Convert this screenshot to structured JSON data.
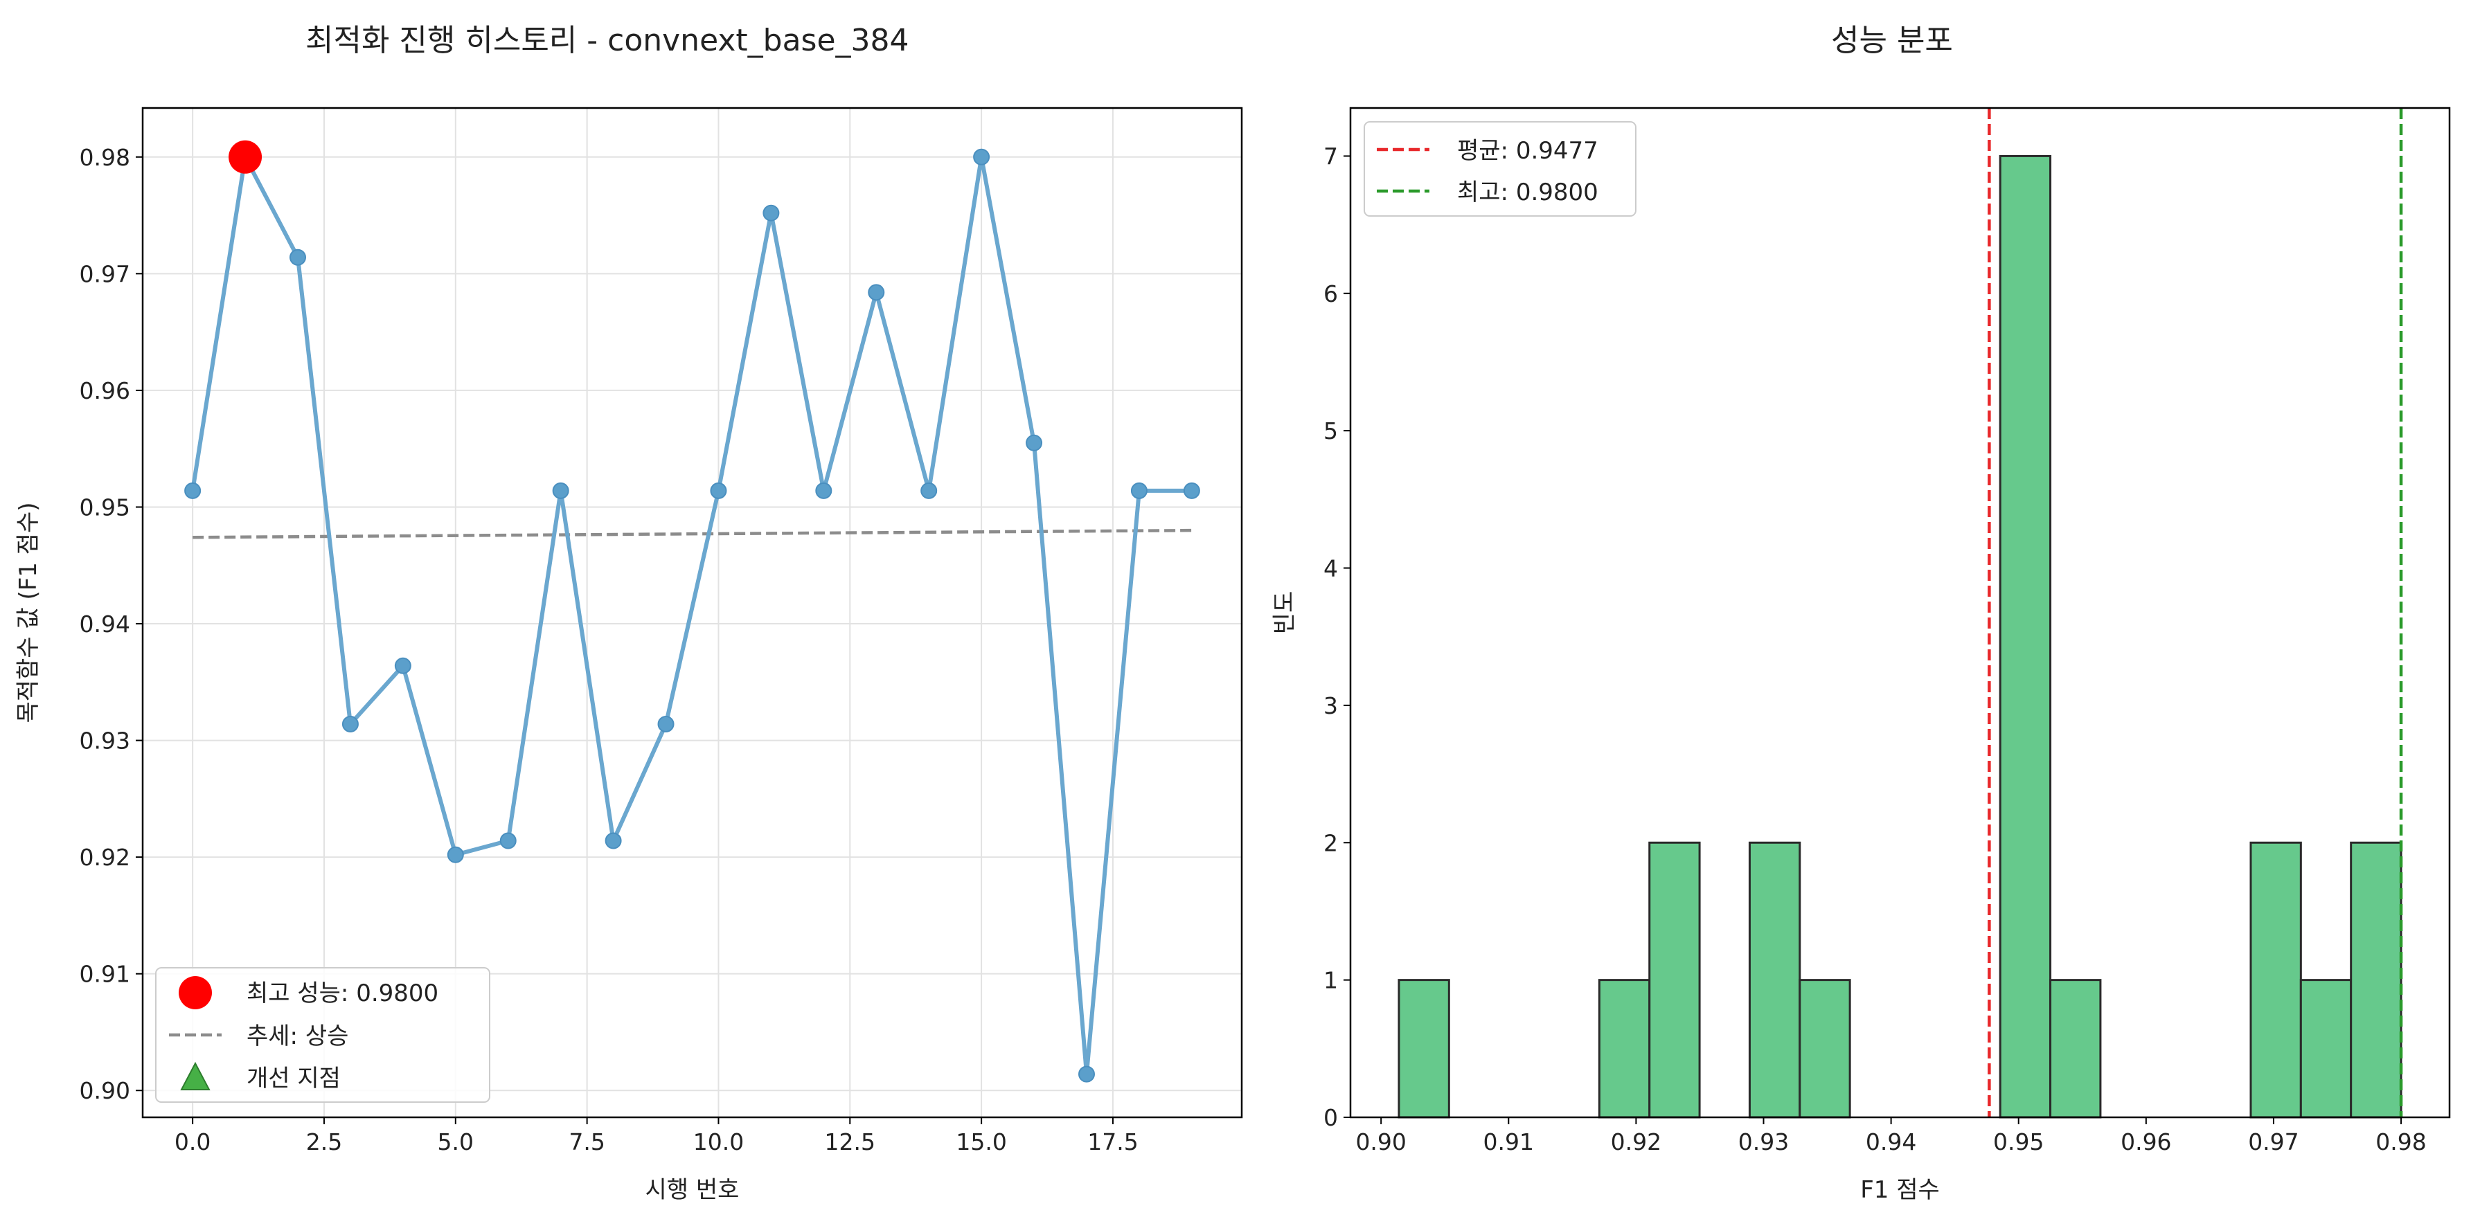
{
  "figure": {
    "left": {
      "title": "최적화 진행 히스토리 - convnext_base_384",
      "chart_data": {
        "type": "line",
        "title": "최적화 진행 히스토리 - convnext_base_384",
        "xlabel": "시행 번호",
        "ylabel": "목적함수 값 (F1 점수)",
        "xlim": [
          -0.95,
          19.95
        ],
        "ylim": [
          0.8977,
          0.9842
        ],
        "xticks": [
          0.0,
          2.5,
          5.0,
          7.5,
          10.0,
          12.5,
          15.0,
          17.5
        ],
        "xtick_labels": [
          "0.0",
          "2.5",
          "5.0",
          "7.5",
          "10.0",
          "12.5",
          "15.0",
          "17.5"
        ],
        "yticks": [
          0.9,
          0.91,
          0.92,
          0.93,
          0.94,
          0.95,
          0.96,
          0.97,
          0.98
        ],
        "ytick_labels": [
          "0.90",
          "0.91",
          "0.92",
          "0.93",
          "0.94",
          "0.95",
          "0.96",
          "0.97",
          "0.98"
        ],
        "grid": true,
        "series": [
          {
            "x": [
              0,
              1,
              2,
              3,
              4,
              5,
              6,
              7,
              8,
              9,
              10,
              11,
              12,
              13,
              14,
              15,
              16,
              17,
              18,
              19
            ],
            "y": [
              0.9514,
              0.98,
              0.9714,
              0.9314,
              0.9364,
              0.9202,
              0.9214,
              0.9514,
              0.9214,
              0.9314,
              0.9514,
              0.9752,
              0.9514,
              0.9684,
              0.9514,
              0.98,
              0.9555,
              0.9014,
              0.9514,
              0.9514
            ],
            "color": "#6aa7cf"
          },
          {
            "name": "최고 성능: 0.9800",
            "x": [
              1
            ],
            "y": [
              0.98
            ],
            "color": "#ff0000"
          },
          {
            "name": "추세: 상승",
            "x": [
              0,
              19
            ],
            "y": [
              0.9474,
              0.948
            ],
            "color": "#8c8c8c"
          },
          {
            "name": "개선 지점",
            "x": [],
            "y": [],
            "color": "#2ca02c"
          }
        ],
        "legend": {
          "position": "lower-left",
          "entries": [
            "최고 성능: 0.9800",
            "추세: 상승",
            "개선 지점"
          ]
        }
      }
    },
    "right": {
      "title": "성능 분포",
      "chart_data": {
        "type": "bar",
        "title": "성능 분포",
        "xlabel": "F1 점수",
        "ylabel": "빈도",
        "xlim": [
          0.8976,
          0.9838
        ],
        "ylim": [
          0,
          7.35
        ],
        "xticks": [
          0.9,
          0.91,
          0.92,
          0.93,
          0.94,
          0.95,
          0.96,
          0.97,
          0.98
        ],
        "xtick_labels": [
          "0.90",
          "0.91",
          "0.92",
          "0.93",
          "0.94",
          "0.95",
          "0.96",
          "0.97",
          "0.98"
        ],
        "yticks": [
          0,
          1,
          2,
          3,
          4,
          5,
          6,
          7
        ],
        "ytick_labels": [
          "0",
          "1",
          "2",
          "3",
          "4",
          "5",
          "6",
          "7"
        ],
        "bin_edges": [
          0.9014,
          0.90533,
          0.90926,
          0.91319,
          0.91712,
          0.92105,
          0.92498,
          0.92891,
          0.93284,
          0.93677,
          0.9407,
          0.94463,
          0.94856,
          0.95249,
          0.95642,
          0.96035,
          0.96428,
          0.96821,
          0.97214,
          0.97607,
          0.98
        ],
        "values": [
          1,
          0,
          0,
          0,
          1,
          2,
          0,
          2,
          1,
          0,
          0,
          0,
          7,
          1,
          0,
          0,
          0,
          2,
          1,
          2
        ],
        "bar_color": "#66c98c",
        "edge_color": "#2a2a2a",
        "lines": [
          {
            "name": "평균: 0.9477",
            "x": 0.9477,
            "color": "#e8282b"
          },
          {
            "name": "최고: 0.9800",
            "x": 0.98,
            "color": "#2a9a2a"
          }
        ],
        "legend": {
          "position": "upper-left",
          "entries": [
            "평균: 0.9477",
            "최고: 0.9800"
          ]
        }
      }
    }
  }
}
